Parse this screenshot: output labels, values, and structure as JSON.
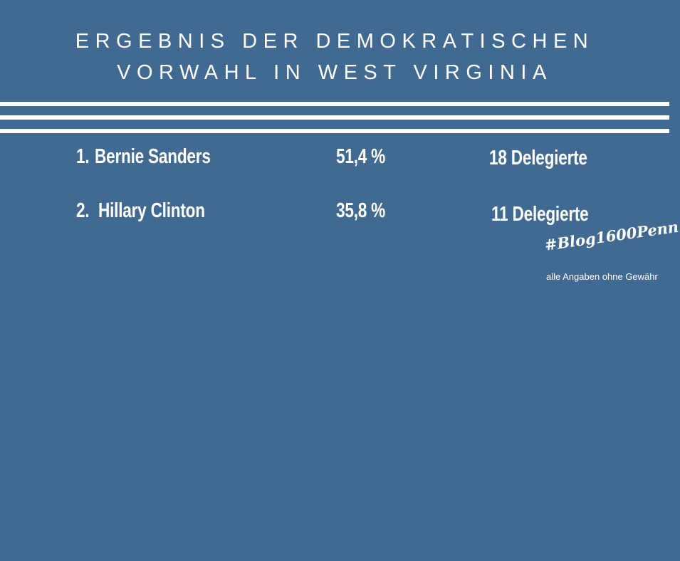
{
  "title": {
    "lines": [
      "ERGEBNIS DER DEMOKRATISCHEN",
      "VORWAHL IN WEST VIRGINIA"
    ]
  },
  "results": [
    {
      "rank": "1.",
      "name": "Bernie Sanders",
      "percent": "51,4 %",
      "delegates": "18 Delegierte"
    },
    {
      "rank": "2.",
      "name": "Hillary Clinton",
      "percent": "35,8 %",
      "delegates": "11 Delegierte"
    }
  ],
  "footer": {
    "hashtag": "#Blog1600Penn",
    "note": "alle Angaben ohne Gewähr"
  }
}
